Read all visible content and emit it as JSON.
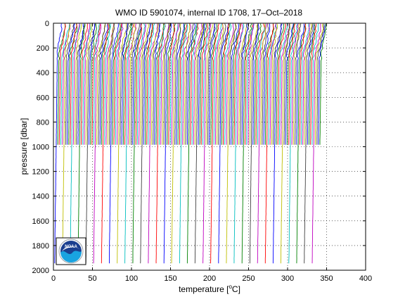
{
  "chart_data": {
    "type": "line",
    "title": "WMO ID 5901074, internal ID 1708, 17–Oct–2018",
    "xlabel_prefix": "temperature [",
    "xlabel_unit_sup": "o",
    "xlabel_suffix": "C]",
    "ylabel": "pressure [dbar]",
    "xlim": [
      0,
      400
    ],
    "ylim": [
      0,
      2000
    ],
    "y_reversed": true,
    "x_ticks": [
      0,
      50,
      100,
      150,
      200,
      250,
      300,
      350,
      400
    ],
    "y_ticks": [
      0,
      200,
      400,
      600,
      800,
      1000,
      1200,
      1400,
      1600,
      1800,
      2000
    ],
    "grid": "dotted",
    "legend": "none",
    "profile_offset_step_c": 2,
    "profile_count": 170,
    "shallow_profile_depth_dbar": 1000,
    "deep_profile_depth_dbar": 1960,
    "deep_profile_every": 5,
    "surface_temp_c": 12,
    "deep_temp_c": 1.5,
    "series_colors": [
      "#0000ff",
      "#008000",
      "#ff0000",
      "#00bfbf",
      "#bf00bf",
      "#bfbf00",
      "#404040"
    ]
  },
  "logo": {
    "text": "NOAA",
    "colors": {
      "sky": "#1b3f8f",
      "water": "#19a3e0",
      "rim": "#ffffff"
    }
  }
}
